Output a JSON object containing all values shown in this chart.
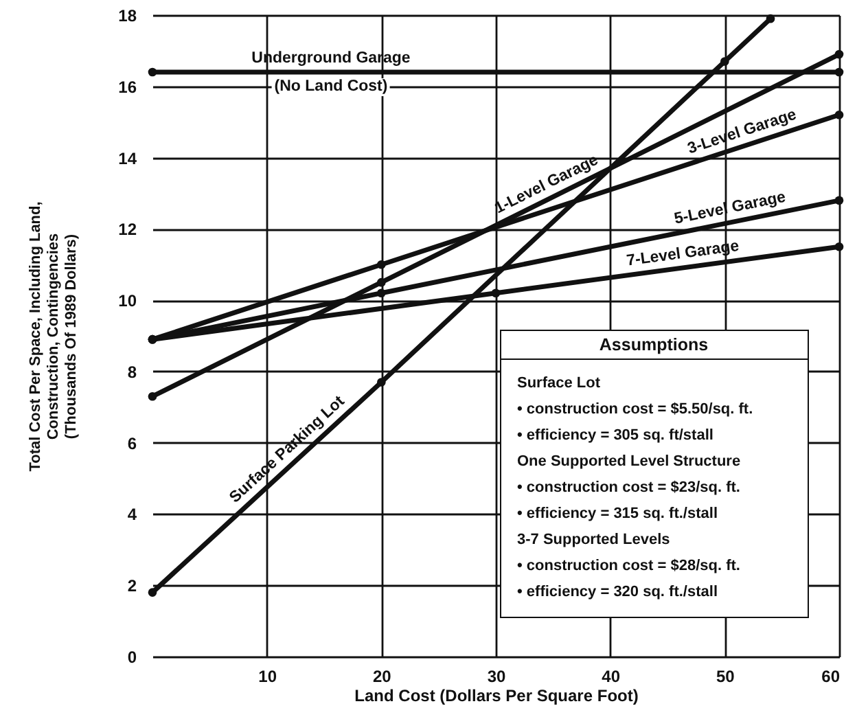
{
  "chart_data": {
    "type": "line",
    "xlabel": "Land Cost (Dollars Per Square Foot)",
    "ylabel": "Total Cost Per Space, Including Land,\nConstruction, Contingencies\n(Thousands Of 1989 Dollars)",
    "xlim": [
      0,
      60
    ],
    "ylim": [
      0,
      18
    ],
    "xticks": [
      10,
      20,
      30,
      40,
      50,
      60
    ],
    "yticks": [
      0,
      2,
      4,
      6,
      8,
      10,
      12,
      14,
      16,
      18
    ],
    "grid": true,
    "marker": "circle",
    "series": [
      {
        "name": "Underground Garage",
        "color": "#111111",
        "x": [
          0,
          60
        ],
        "values": [
          16.4,
          16.4
        ]
      },
      {
        "name": "1-Level Garage",
        "color": "#111111",
        "x": [
          0,
          20,
          60
        ],
        "values": [
          7.3,
          10.5,
          16.9
        ]
      },
      {
        "name": "3-Level Garage",
        "color": "#111111",
        "x": [
          0,
          20,
          60
        ],
        "values": [
          8.9,
          11.0,
          15.2
        ]
      },
      {
        "name": "5-Level Garage",
        "color": "#111111",
        "x": [
          0,
          20,
          60
        ],
        "values": [
          8.9,
          10.2,
          12.8
        ]
      },
      {
        "name": "7-Level Garage",
        "color": "#111111",
        "x": [
          0,
          30,
          60
        ],
        "values": [
          8.9,
          10.2,
          11.5
        ]
      },
      {
        "name": "Surface Parking Lot",
        "color": "#111111",
        "x": [
          0,
          20,
          50,
          54
        ],
        "values": [
          1.8,
          7.7,
          16.7,
          17.9
        ]
      }
    ],
    "annotations": [
      "(No Land Cost)",
      "Assumptions",
      "Surface Lot",
      "• construction cost = $5.50/sq. ft.",
      "• efficiency = 305 sq. ft/stall",
      "One Supported Level Structure",
      "• construction cost = $23/sq. ft.",
      "• efficiency = 315 sq. ft./stall",
      "3-7 Supported Levels",
      "• construction cost = $28/sq. ft.",
      "• efficiency = 320 sq. ft./stall"
    ]
  }
}
